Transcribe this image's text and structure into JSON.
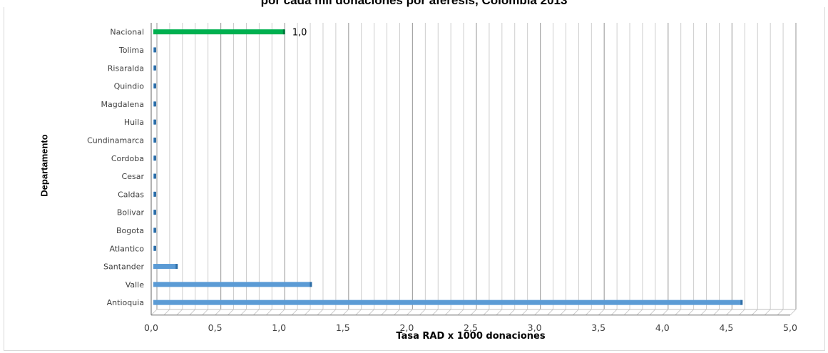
{
  "chart_data": {
    "type": "bar",
    "orientation": "horizontal",
    "title": "por cada mil donaciones por aféresis, Colombia 2013",
    "xlabel": "Tasa RAD x 1000 donaciones",
    "ylabel": "Departamento",
    "categories": [
      "Antioquia",
      "Valle",
      "Santander",
      "Atlantico",
      "Bogota",
      "Bolivar",
      "Caldas",
      "Cesar",
      "Cordoba",
      "Cundinamarca",
      "Huila",
      "Magdalena",
      "Quindio",
      "Risaralda",
      "Tolima",
      "Nacional"
    ],
    "values": [
      4.6,
      1.23,
      0.18,
      0.0,
      0.0,
      0.0,
      0.0,
      0.0,
      0.0,
      0.0,
      0.0,
      0.0,
      0.0,
      0.0,
      0.0,
      1.02
    ],
    "xlim": [
      0,
      5
    ],
    "xticks": [
      "0,0",
      "0,5",
      "1,0",
      "1,5",
      "2,0",
      "2,5",
      "3,0",
      "3,5",
      "4,0",
      "4,5",
      "5,0"
    ],
    "data_labels": [
      {
        "category": "Nacional",
        "text": "1,0"
      }
    ],
    "colors": {
      "default_bar": "#5b9bd5",
      "highlight_bar": "#00b050",
      "gridline": "#a6a6a6"
    },
    "highlight_category": "Nacional",
    "grid": true,
    "legend": "none"
  }
}
